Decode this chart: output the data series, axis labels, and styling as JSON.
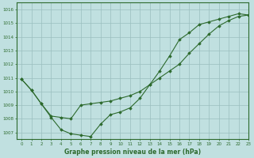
{
  "line1_x": [
    0,
    1,
    2,
    3,
    4,
    5,
    6,
    7,
    8,
    9,
    10,
    11,
    12,
    13,
    14,
    15,
    16,
    17,
    18,
    19,
    20,
    21,
    22,
    23
  ],
  "line1_y": [
    1010.9,
    1010.1,
    1009.1,
    1008.1,
    1007.2,
    1006.9,
    1006.8,
    1006.7,
    1007.6,
    1008.3,
    1008.5,
    1008.8,
    1009.5,
    1010.5,
    1011.5,
    1012.6,
    1013.8,
    1014.3,
    1014.9,
    1015.1,
    1015.3,
    1015.5,
    1015.7,
    1015.6
  ],
  "line2_x": [
    0,
    1,
    2,
    3,
    4,
    5,
    6,
    7,
    8,
    9,
    10,
    11,
    12,
    13,
    14,
    15,
    16,
    17,
    18,
    19,
    20,
    21,
    22,
    23
  ],
  "line2_y": [
    1010.9,
    1010.1,
    1009.1,
    1008.2,
    1008.1,
    1008.0,
    1009.0,
    1009.1,
    1009.2,
    1009.3,
    1009.5,
    1009.7,
    1010.0,
    1010.5,
    1011.0,
    1011.5,
    1012.0,
    1012.8,
    1013.5,
    1014.2,
    1014.8,
    1015.2,
    1015.5,
    1015.6
  ],
  "line_color": "#2d6a2d",
  "bg_color": "#c0e0e0",
  "grid_color": "#9abebe",
  "xlabel": "Graphe pression niveau de la mer (hPa)",
  "ylim": [
    1006.5,
    1016.5
  ],
  "xlim": [
    -0.5,
    23
  ],
  "yticks": [
    1007,
    1008,
    1009,
    1010,
    1011,
    1012,
    1013,
    1014,
    1015,
    1016
  ],
  "xticks": [
    0,
    1,
    2,
    3,
    4,
    5,
    6,
    7,
    8,
    9,
    10,
    11,
    12,
    13,
    14,
    15,
    16,
    17,
    18,
    19,
    20,
    21,
    22,
    23
  ]
}
